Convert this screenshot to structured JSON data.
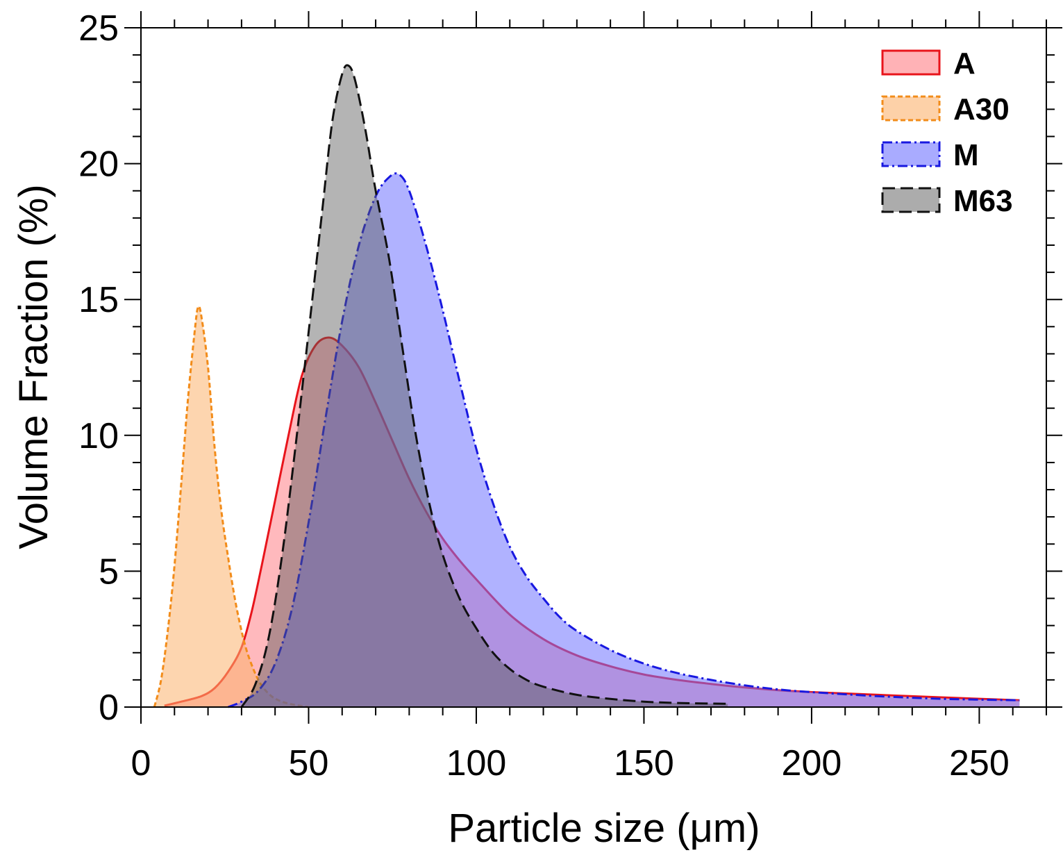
{
  "chart_data": {
    "type": "area",
    "xlabel": "Particle size (μm)",
    "ylabel": "Volume Fraction (%)",
    "xlim": [
      0,
      270
    ],
    "ylim": [
      0,
      25
    ],
    "x_ticks": [
      0,
      50,
      100,
      150,
      200,
      250
    ],
    "x_tick_labels": [
      "0",
      "50",
      "100",
      "150",
      "200",
      "250"
    ],
    "y_ticks": [
      0,
      5,
      10,
      15,
      20,
      25
    ],
    "y_tick_labels": [
      "0",
      "5",
      "10",
      "15",
      "20",
      "25"
    ],
    "x_minor_step": 10,
    "y_minor_step": 1,
    "grid": false,
    "legend_position": "top-right",
    "series": [
      {
        "name": "A",
        "line_color": "#e8141b",
        "fill_color": "#ff7f86",
        "fill_opacity": 0.55,
        "dash": "solid",
        "x": [
          7,
          12,
          18,
          22,
          26,
          30,
          33,
          36,
          40,
          44,
          48,
          52,
          56,
          60,
          65,
          70,
          75,
          80,
          85,
          90,
          95,
          100,
          110,
          120,
          130,
          140,
          150,
          160,
          170,
          180,
          190,
          200,
          220,
          240,
          262
        ],
        "y": [
          0.05,
          0.2,
          0.4,
          0.7,
          1.3,
          2.2,
          3.5,
          5.2,
          7.6,
          10.0,
          12.2,
          13.3,
          13.6,
          13.3,
          12.5,
          11.2,
          9.8,
          8.4,
          7.2,
          6.2,
          5.4,
          4.7,
          3.4,
          2.5,
          1.9,
          1.5,
          1.2,
          1.0,
          0.85,
          0.72,
          0.62,
          0.55,
          0.45,
          0.35,
          0.25
        ]
      },
      {
        "name": "A30",
        "line_color": "#f28c1a",
        "fill_color": "#fbb36e",
        "fill_opacity": 0.55,
        "dash": "short-dash",
        "x": [
          4,
          6,
          8,
          10,
          12,
          14,
          16,
          17,
          18,
          20,
          22,
          24,
          26,
          28,
          30,
          32,
          35,
          38,
          41,
          45,
          50
        ],
        "y": [
          0,
          1.0,
          2.8,
          5.2,
          8.2,
          11.3,
          13.8,
          14.7,
          14.4,
          12.5,
          9.5,
          7.2,
          5.5,
          4.0,
          2.8,
          1.9,
          1.0,
          0.5,
          0.25,
          0.1,
          0
        ]
      },
      {
        "name": "M",
        "line_color": "#1818e0",
        "fill_color": "#6f73ff",
        "fill_opacity": 0.55,
        "dash": "dash-dot",
        "x": [
          26,
          30,
          35,
          40,
          45,
          50,
          55,
          60,
          65,
          70,
          74,
          77,
          80,
          85,
          90,
          95,
          100,
          105,
          110,
          115,
          120,
          125,
          130,
          140,
          150,
          160,
          170,
          180,
          190,
          200,
          220,
          240,
          262
        ],
        "y": [
          0,
          0.2,
          0.6,
          1.6,
          3.6,
          6.8,
          10.6,
          14.2,
          17.0,
          18.8,
          19.5,
          19.6,
          19.0,
          17.0,
          14.6,
          12.0,
          9.5,
          7.5,
          5.9,
          4.8,
          4.0,
          3.3,
          2.8,
          2.1,
          1.6,
          1.25,
          1.0,
          0.8,
          0.65,
          0.55,
          0.4,
          0.3,
          0.25
        ]
      },
      {
        "name": "M63",
        "line_color": "#111111",
        "fill_color": "#595959",
        "fill_opacity": 0.45,
        "dash": "long-dash",
        "x": [
          30,
          34,
          38,
          42,
          46,
          50,
          54,
          57,
          60,
          62,
          64,
          67,
          70,
          74,
          78,
          82,
          86,
          90,
          95,
          100,
          105,
          110,
          115,
          120,
          130,
          140,
          150,
          160,
          175
        ],
        "y": [
          0,
          0.8,
          2.5,
          5.5,
          9.5,
          13.8,
          18.2,
          21.5,
          23.3,
          23.6,
          23.0,
          21.2,
          19.0,
          16.5,
          13.2,
          10.0,
          7.5,
          5.6,
          4.0,
          2.9,
          2.0,
          1.4,
          1.0,
          0.75,
          0.45,
          0.3,
          0.2,
          0.15,
          0.12
        ]
      }
    ]
  }
}
